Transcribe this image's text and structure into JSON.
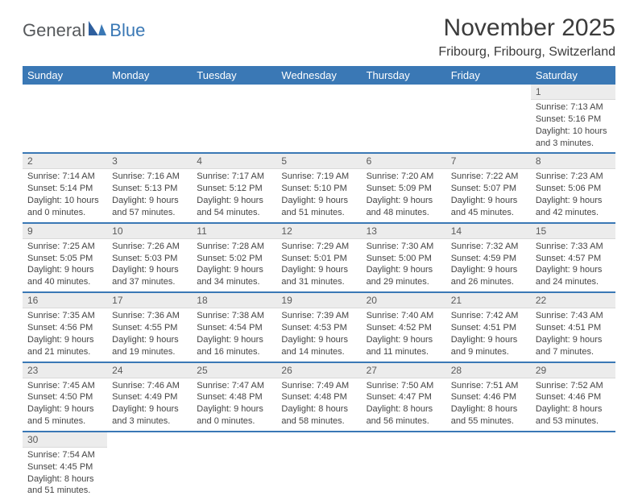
{
  "logo": {
    "part1": "General",
    "part2": "Blue"
  },
  "title": "November 2025",
  "location": "Fribourg, Fribourg, Switzerland",
  "colors": {
    "header_bg": "#3a78b5",
    "header_text": "#ffffff",
    "daynum_bg": "#ececec",
    "border": "#3a78b5",
    "body_text": "#444444"
  },
  "weekdays": [
    "Sunday",
    "Monday",
    "Tuesday",
    "Wednesday",
    "Thursday",
    "Friday",
    "Saturday"
  ],
  "weeks": [
    [
      null,
      null,
      null,
      null,
      null,
      null,
      {
        "n": "1",
        "sunrise": "Sunrise: 7:13 AM",
        "sunset": "Sunset: 5:16 PM",
        "daylight": "Daylight: 10 hours and 3 minutes."
      }
    ],
    [
      {
        "n": "2",
        "sunrise": "Sunrise: 7:14 AM",
        "sunset": "Sunset: 5:14 PM",
        "daylight": "Daylight: 10 hours and 0 minutes."
      },
      {
        "n": "3",
        "sunrise": "Sunrise: 7:16 AM",
        "sunset": "Sunset: 5:13 PM",
        "daylight": "Daylight: 9 hours and 57 minutes."
      },
      {
        "n": "4",
        "sunrise": "Sunrise: 7:17 AM",
        "sunset": "Sunset: 5:12 PM",
        "daylight": "Daylight: 9 hours and 54 minutes."
      },
      {
        "n": "5",
        "sunrise": "Sunrise: 7:19 AM",
        "sunset": "Sunset: 5:10 PM",
        "daylight": "Daylight: 9 hours and 51 minutes."
      },
      {
        "n": "6",
        "sunrise": "Sunrise: 7:20 AM",
        "sunset": "Sunset: 5:09 PM",
        "daylight": "Daylight: 9 hours and 48 minutes."
      },
      {
        "n": "7",
        "sunrise": "Sunrise: 7:22 AM",
        "sunset": "Sunset: 5:07 PM",
        "daylight": "Daylight: 9 hours and 45 minutes."
      },
      {
        "n": "8",
        "sunrise": "Sunrise: 7:23 AM",
        "sunset": "Sunset: 5:06 PM",
        "daylight": "Daylight: 9 hours and 42 minutes."
      }
    ],
    [
      {
        "n": "9",
        "sunrise": "Sunrise: 7:25 AM",
        "sunset": "Sunset: 5:05 PM",
        "daylight": "Daylight: 9 hours and 40 minutes."
      },
      {
        "n": "10",
        "sunrise": "Sunrise: 7:26 AM",
        "sunset": "Sunset: 5:03 PM",
        "daylight": "Daylight: 9 hours and 37 minutes."
      },
      {
        "n": "11",
        "sunrise": "Sunrise: 7:28 AM",
        "sunset": "Sunset: 5:02 PM",
        "daylight": "Daylight: 9 hours and 34 minutes."
      },
      {
        "n": "12",
        "sunrise": "Sunrise: 7:29 AM",
        "sunset": "Sunset: 5:01 PM",
        "daylight": "Daylight: 9 hours and 31 minutes."
      },
      {
        "n": "13",
        "sunrise": "Sunrise: 7:30 AM",
        "sunset": "Sunset: 5:00 PM",
        "daylight": "Daylight: 9 hours and 29 minutes."
      },
      {
        "n": "14",
        "sunrise": "Sunrise: 7:32 AM",
        "sunset": "Sunset: 4:59 PM",
        "daylight": "Daylight: 9 hours and 26 minutes."
      },
      {
        "n": "15",
        "sunrise": "Sunrise: 7:33 AM",
        "sunset": "Sunset: 4:57 PM",
        "daylight": "Daylight: 9 hours and 24 minutes."
      }
    ],
    [
      {
        "n": "16",
        "sunrise": "Sunrise: 7:35 AM",
        "sunset": "Sunset: 4:56 PM",
        "daylight": "Daylight: 9 hours and 21 minutes."
      },
      {
        "n": "17",
        "sunrise": "Sunrise: 7:36 AM",
        "sunset": "Sunset: 4:55 PM",
        "daylight": "Daylight: 9 hours and 19 minutes."
      },
      {
        "n": "18",
        "sunrise": "Sunrise: 7:38 AM",
        "sunset": "Sunset: 4:54 PM",
        "daylight": "Daylight: 9 hours and 16 minutes."
      },
      {
        "n": "19",
        "sunrise": "Sunrise: 7:39 AM",
        "sunset": "Sunset: 4:53 PM",
        "daylight": "Daylight: 9 hours and 14 minutes."
      },
      {
        "n": "20",
        "sunrise": "Sunrise: 7:40 AM",
        "sunset": "Sunset: 4:52 PM",
        "daylight": "Daylight: 9 hours and 11 minutes."
      },
      {
        "n": "21",
        "sunrise": "Sunrise: 7:42 AM",
        "sunset": "Sunset: 4:51 PM",
        "daylight": "Daylight: 9 hours and 9 minutes."
      },
      {
        "n": "22",
        "sunrise": "Sunrise: 7:43 AM",
        "sunset": "Sunset: 4:51 PM",
        "daylight": "Daylight: 9 hours and 7 minutes."
      }
    ],
    [
      {
        "n": "23",
        "sunrise": "Sunrise: 7:45 AM",
        "sunset": "Sunset: 4:50 PM",
        "daylight": "Daylight: 9 hours and 5 minutes."
      },
      {
        "n": "24",
        "sunrise": "Sunrise: 7:46 AM",
        "sunset": "Sunset: 4:49 PM",
        "daylight": "Daylight: 9 hours and 3 minutes."
      },
      {
        "n": "25",
        "sunrise": "Sunrise: 7:47 AM",
        "sunset": "Sunset: 4:48 PM",
        "daylight": "Daylight: 9 hours and 0 minutes."
      },
      {
        "n": "26",
        "sunrise": "Sunrise: 7:49 AM",
        "sunset": "Sunset: 4:48 PM",
        "daylight": "Daylight: 8 hours and 58 minutes."
      },
      {
        "n": "27",
        "sunrise": "Sunrise: 7:50 AM",
        "sunset": "Sunset: 4:47 PM",
        "daylight": "Daylight: 8 hours and 56 minutes."
      },
      {
        "n": "28",
        "sunrise": "Sunrise: 7:51 AM",
        "sunset": "Sunset: 4:46 PM",
        "daylight": "Daylight: 8 hours and 55 minutes."
      },
      {
        "n": "29",
        "sunrise": "Sunrise: 7:52 AM",
        "sunset": "Sunset: 4:46 PM",
        "daylight": "Daylight: 8 hours and 53 minutes."
      }
    ],
    [
      {
        "n": "30",
        "sunrise": "Sunrise: 7:54 AM",
        "sunset": "Sunset: 4:45 PM",
        "daylight": "Daylight: 8 hours and 51 minutes."
      },
      null,
      null,
      null,
      null,
      null,
      null
    ]
  ]
}
